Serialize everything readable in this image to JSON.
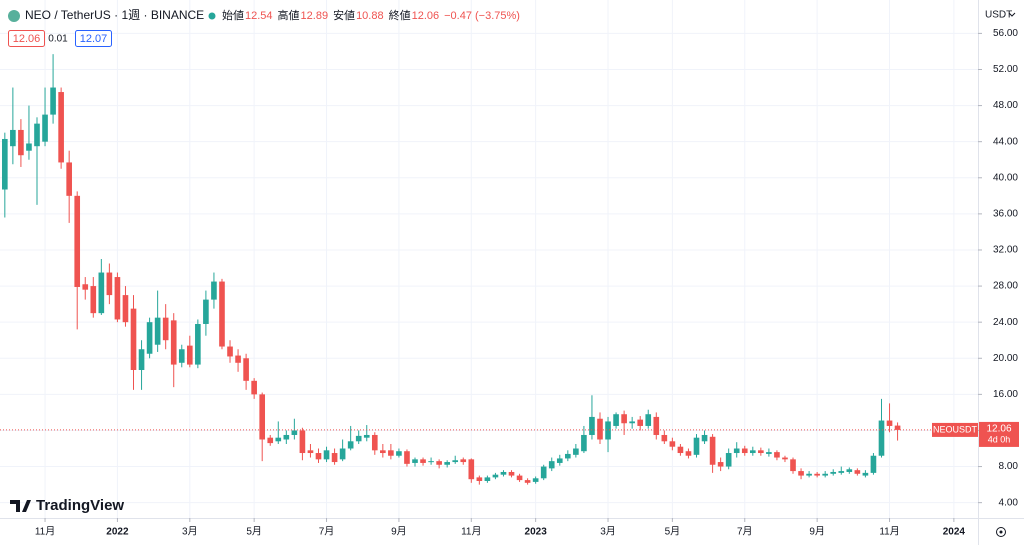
{
  "chart_data": {
    "type": "candlestick",
    "title": "NEO / TetherUS · 1週 · BINANCE",
    "legend": {
      "open_label": "始値",
      "open": 12.54,
      "high_label": "高値",
      "high": 12.89,
      "low_label": "安値",
      "low": 10.88,
      "close_label": "終値",
      "close": 12.06,
      "change": "−0.47 (−3.75%)"
    },
    "quote": {
      "bid": 12.06,
      "spread": 0.01,
      "ask": 12.07
    },
    "currency": "USDT",
    "price_tag": {
      "symbol": "NEOUSDT",
      "price": 12.06,
      "countdown": "4d 0h"
    },
    "logo": "TradingView",
    "up_color": "#26a69a",
    "down_color": "#ef5350",
    "grid": true,
    "xlim": [
      -0.6,
      121
    ],
    "xticks": [
      {
        "value": 5,
        "label": "11月"
      },
      {
        "value": 14,
        "label": "2022"
      },
      {
        "value": 23,
        "label": "3月"
      },
      {
        "value": 31,
        "label": "5月"
      },
      {
        "value": 40,
        "label": "7月"
      },
      {
        "value": 49,
        "label": "9月"
      },
      {
        "value": 58,
        "label": "11月"
      },
      {
        "value": 66,
        "label": "2023"
      },
      {
        "value": 75,
        "label": "3月"
      },
      {
        "value": 83,
        "label": "5月"
      },
      {
        "value": 92,
        "label": "7月"
      },
      {
        "value": 101,
        "label": "9月"
      },
      {
        "value": 110,
        "label": "11月"
      },
      {
        "value": 118,
        "label": "2024"
      }
    ],
    "ylim": [
      2.3,
      59.7
    ],
    "yticks": [
      {
        "value": 4,
        "label": "4.00"
      },
      {
        "value": 8,
        "label": "8.00"
      },
      {
        "value": 12,
        "label": "12.00"
      },
      {
        "value": 16,
        "label": "16.00"
      },
      {
        "value": 20,
        "label": "20.00"
      },
      {
        "value": 24,
        "label": "24.00"
      },
      {
        "value": 28,
        "label": "28.00"
      },
      {
        "value": 32,
        "label": "32.00"
      },
      {
        "value": 36,
        "label": "36.00"
      },
      {
        "value": 40,
        "label": "40.00"
      },
      {
        "value": 44,
        "label": "44.00"
      },
      {
        "value": 48,
        "label": "48.00"
      },
      {
        "value": 52,
        "label": "52.00"
      },
      {
        "value": 56,
        "label": "56.00"
      }
    ],
    "open": [
      38.7,
      43.5,
      45.3,
      43,
      43.5,
      44,
      47,
      49.5,
      41.7,
      38,
      28.2,
      28,
      25,
      29.5,
      29,
      27,
      25.5,
      18.7,
      20.5,
      21.5,
      24.5,
      24.2,
      19.5,
      21.4,
      19.3,
      23.8,
      26.5,
      28.5,
      21.3,
      20.3,
      20,
      17.5,
      16,
      11.2,
      10.8,
      11,
      11.5,
      12,
      9.8,
      9.5,
      8.8,
      9.5,
      8.8,
      10,
      10.8,
      11.2,
      11.5,
      9.8,
      9.8,
      9.2,
      9.7,
      8.4,
      8.8,
      8.5,
      8.6,
      8.2,
      8.5,
      8.8,
      8.8,
      6.8,
      6.4,
      6.8,
      7.1,
      7.4,
      7,
      6.5,
      6.3,
      6.7,
      7.8,
      8.4,
      8.9,
      9.3,
      9.7,
      11.5,
      13.3,
      11,
      12.5,
      13.8,
      12.8,
      13.2,
      12.5,
      13.5,
      11.5,
      10.8,
      10.2,
      9.7,
      9.3,
      10.8,
      11.3,
      8.5,
      8,
      9.5,
      10,
      9.5,
      9.8,
      9.4,
      9.6,
      9,
      8.8,
      7.5,
      7,
      7.2,
      7,
      7.2,
      7.3,
      7.4,
      7.6,
      7,
      7.3,
      9.2,
      13.1,
      12.54
    ],
    "high": [
      45,
      50,
      46.5,
      48,
      46.7,
      50,
      53.7,
      50,
      43,
      38.5,
      29,
      29,
      31,
      30.5,
      29.5,
      28,
      27,
      22,
      24.5,
      27.5,
      26,
      25,
      21.5,
      22.5,
      24.3,
      27.5,
      29.5,
      28.8,
      22,
      21,
      20.5,
      17.8,
      16.2,
      11.5,
      13,
      12,
      13.3,
      12.3,
      10.5,
      10,
      10.2,
      10,
      11,
      12.5,
      12,
      12.6,
      11.8,
      10.5,
      10.5,
      10,
      9.9,
      9,
      9,
      9,
      8.8,
      8.7,
      9.2,
      9,
      8.9,
      7,
      7,
      7.3,
      7.6,
      7.6,
      7.2,
      6.7,
      6.9,
      8.2,
      9,
      9.3,
      9.8,
      10.5,
      12.5,
      15.9,
      14,
      13.5,
      14,
      14.2,
      13.5,
      13.6,
      14.3,
      14,
      12,
      11.2,
      10.5,
      10,
      11.6,
      12,
      11.6,
      9,
      10,
      10.7,
      10.3,
      10.2,
      10.1,
      10,
      9.8,
      9.2,
      9,
      7.8,
      7.5,
      7.4,
      7.5,
      7.7,
      8,
      7.9,
      7.8,
      7.6,
      9.5,
      15.5,
      15,
      12.89
    ],
    "low": [
      35.6,
      41.5,
      41.2,
      42,
      37,
      43.5,
      46,
      41,
      35,
      23.2,
      26.5,
      24.5,
      24.8,
      26,
      24,
      23.5,
      16.5,
      16.5,
      20,
      20.7,
      21,
      16.8,
      19,
      19,
      18.9,
      22.5,
      25.5,
      21,
      19.5,
      18.5,
      16.5,
      15.5,
      8.6,
      10.3,
      10.5,
      10.5,
      11,
      8.7,
      9,
      8.4,
      8.5,
      8.2,
      8.6,
      9.8,
      10.5,
      10.8,
      9.3,
      9,
      8.8,
      9,
      8,
      8,
      8.1,
      8.2,
      7.8,
      7.9,
      8.3,
      8.2,
      6.2,
      6,
      6.2,
      6.6,
      6.9,
      6.8,
      6.3,
      6,
      6.1,
      6.5,
      7.5,
      8.1,
      8.6,
      9,
      9.5,
      11,
      10.5,
      9.6,
      12.2,
      11.5,
      12.2,
      12,
      12.2,
      11,
      10.5,
      9.8,
      9.2,
      8.9,
      9,
      10.5,
      7.3,
      7.5,
      7.7,
      9,
      9.2,
      9.2,
      9.2,
      9.1,
      8.7,
      8.5,
      7.2,
      6.6,
      6.8,
      6.8,
      6.8,
      7,
      7.1,
      7.2,
      7,
      6.8,
      7.1,
      9,
      11.8,
      10.88
    ],
    "close": [
      44.3,
      45.3,
      42.5,
      43.8,
      46,
      47,
      50,
      41.7,
      38,
      27.9,
      27.6,
      25,
      29.5,
      27,
      24.3,
      24,
      18.7,
      21,
      24,
      24.5,
      22,
      19.3,
      21,
      19.3,
      23.8,
      26.5,
      28.5,
      21.3,
      20.2,
      19.5,
      17.5,
      16,
      11,
      10.6,
      11.2,
      11.5,
      12,
      9.5,
      9.5,
      8.8,
      9.8,
      8.5,
      10,
      10.8,
      11.4,
      11.5,
      9.8,
      9.5,
      9.2,
      9.7,
      8.3,
      8.8,
      8.4,
      8.6,
      8.2,
      8.5,
      8.7,
      8.5,
      6.6,
      6.4,
      6.8,
      7.1,
      7.4,
      7,
      6.5,
      6.2,
      6.7,
      8,
      8.6,
      8.9,
      9.4,
      10,
      11.5,
      13.5,
      11,
      13,
      13.8,
      12.8,
      13,
      12.5,
      13.8,
      11.5,
      10.8,
      10.2,
      9.5,
      9.2,
      11.2,
      11.5,
      8.2,
      8,
      9.5,
      10,
      9.5,
      9.8,
      9.5,
      9.6,
      9,
      8.8,
      7.5,
      7,
      7.2,
      7,
      7.2,
      7.4,
      7.5,
      7.7,
      7.2,
      7.3,
      9.2,
      13.1,
      12.5,
      12.06
    ]
  }
}
